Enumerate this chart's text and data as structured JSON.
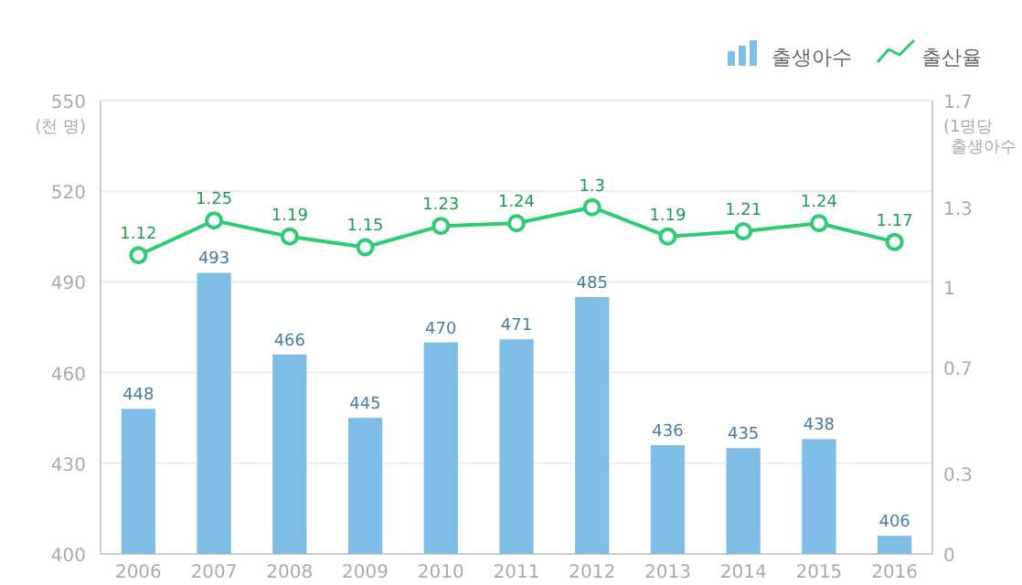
{
  "chart_data": {
    "type": "bar",
    "ylabel": "(천 명)",
    "y2label": "(1명당 출생아수",
    "categories": [
      "2006",
      "2007",
      "2008",
      "2009",
      "2010",
      "2011",
      "2012",
      "2013",
      "2014",
      "2015",
      "2016"
    ],
    "series": [
      {
        "name": "출생아수",
        "color": "#7dbde6",
        "values": [
          448,
          493,
          466,
          445,
          470,
          471,
          485,
          436,
          435,
          438,
          406
        ]
      },
      {
        "name": "출산율",
        "type": "line",
        "axis": "y2",
        "color": "#2ecc71",
        "marker": "circle",
        "values": [
          1.12,
          1.25,
          1.19,
          1.15,
          1.23,
          1.24,
          1.3,
          1.19,
          1.21,
          1.24,
          1.17
        ]
      }
    ],
    "ylim": [
      400,
      550
    ],
    "yticks": [
      400,
      430,
      460,
      490,
      520,
      550
    ],
    "y2lim": [
      0,
      1.7
    ],
    "y2ticks": [
      0,
      0.3,
      0.7,
      1,
      1.3,
      1.7
    ],
    "data_labels": true,
    "grid": "y",
    "legend": "top right"
  }
}
